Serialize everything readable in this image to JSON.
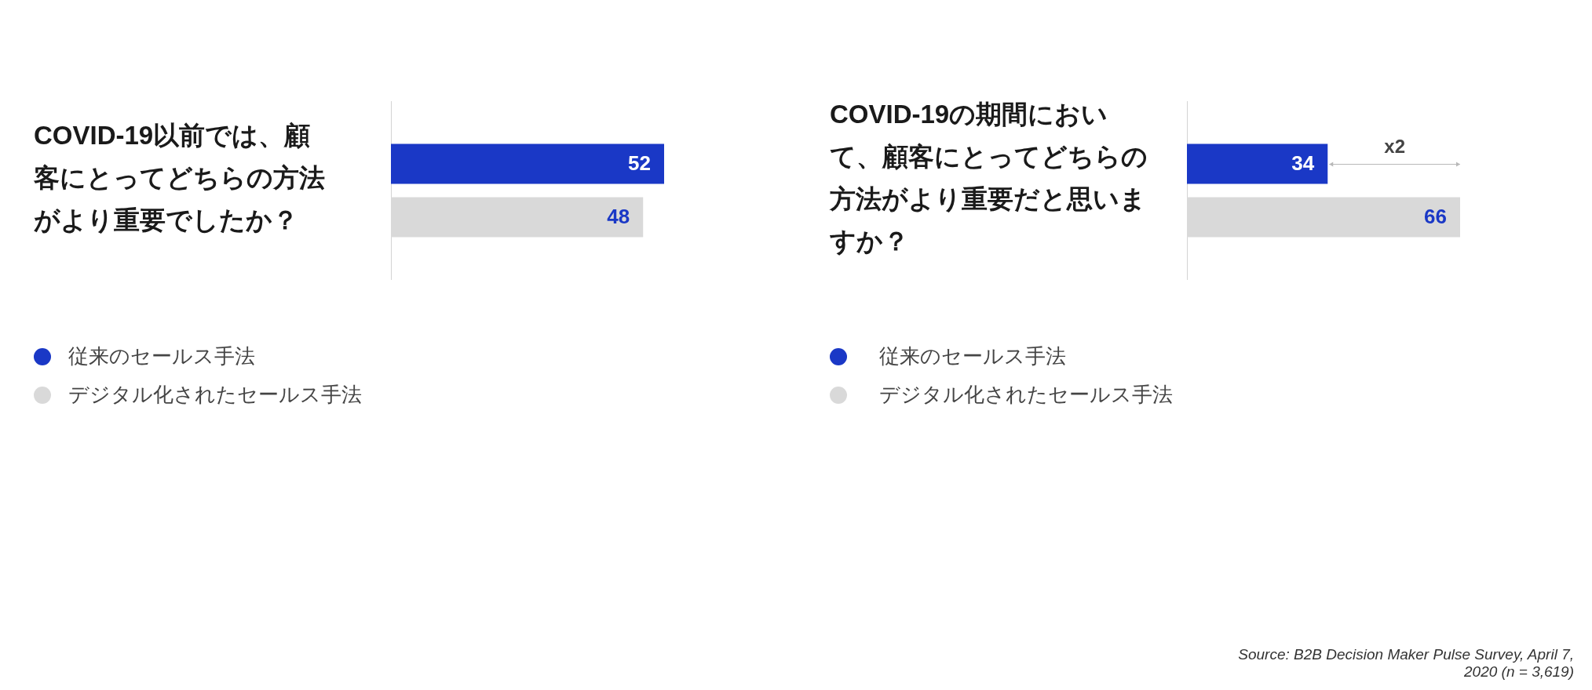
{
  "chart_data": [
    {
      "type": "bar",
      "orientation": "horizontal",
      "title": "COVID-19以前では、顧客にとってどちらの方法がより重要でしたか？",
      "categories": [
        null
      ],
      "series": [
        {
          "name": "従来のセールス手法",
          "color": "#1a38c6",
          "values": [
            52
          ]
        },
        {
          "name": "デジタル化されたセールス手法",
          "color": "#d9d9d9",
          "values": [
            48
          ]
        }
      ],
      "data_labels": true,
      "legend": "bottom left",
      "tick_labels": false
    },
    {
      "type": "bar",
      "orientation": "horizontal",
      "title": "COVID-19の期間において、顧客にとってどちらの方法がより重要だと思いますか？",
      "categories": [
        null
      ],
      "series": [
        {
          "name": "従来のセールス手法",
          "color": "#1a38c6",
          "values": [
            34
          ]
        },
        {
          "name": "デジタル化されたセールス手法",
          "color": "#d9d9d9",
          "values": [
            66
          ]
        }
      ],
      "annotations": [
        "x2",
        "Source: B2B Decision Maker Pulse Survey, April 7, 2020 (n = 3,619)"
      ],
      "data_labels": true,
      "legend": "bottom left",
      "tick_labels": false
    }
  ]
}
